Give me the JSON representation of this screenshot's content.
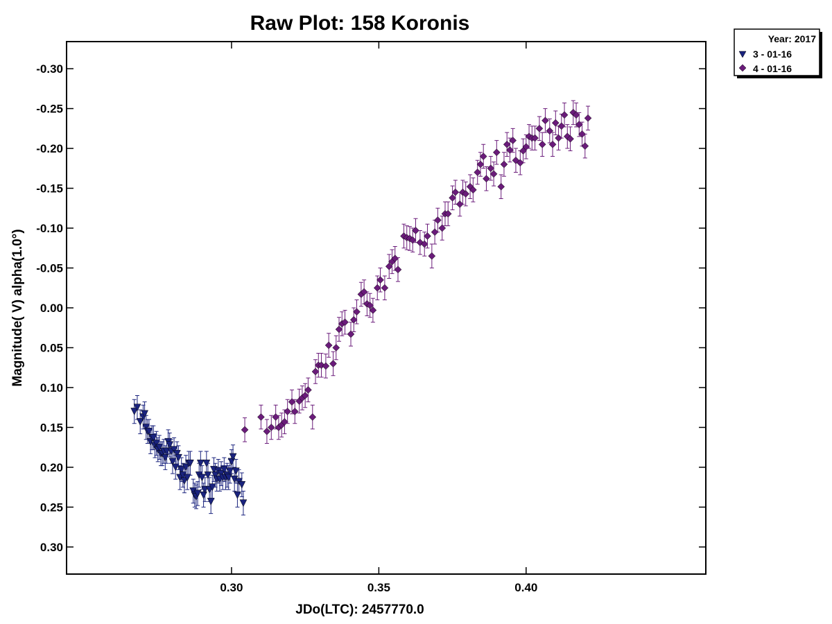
{
  "chart_data": {
    "type": "scatter",
    "title": "Raw Plot: 158 Koronis",
    "xlabel": "JDo(LTC): 2457770.0",
    "ylabel": "Magnitude( V) alpha(1.0°)",
    "xlim": [
      0.244,
      0.461
    ],
    "ylim": [
      0.334,
      -0.334
    ],
    "y_inverted": true,
    "x_ticks": [
      "0.30",
      "0.35",
      "0.40"
    ],
    "x_tick_values": [
      0.3,
      0.35,
      0.4
    ],
    "y_ticks": [
      "-0.30",
      "-0.25",
      "-0.20",
      "-0.15",
      "-0.10",
      "-0.05",
      "0.00",
      "0.05",
      "0.10",
      "0.15",
      "0.20",
      "0.25",
      "0.30"
    ],
    "y_tick_values": [
      -0.3,
      -0.25,
      -0.2,
      -0.15,
      -0.1,
      -0.05,
      0.0,
      0.05,
      0.1,
      0.15,
      0.2,
      0.25,
      0.3
    ],
    "grid": false,
    "error_bar": 0.015,
    "legend": {
      "placement": "top-right, outside plot",
      "title": "Year: 2017",
      "entries": [
        "3 - 01-16",
        "4 - 01-16"
      ]
    },
    "series": [
      {
        "name": "3 - 01-16",
        "marker": "triangle-down",
        "color": "#1a237e",
        "points": [
          [
            0.267,
            0.13
          ],
          [
            0.268,
            0.125
          ],
          [
            0.269,
            0.143
          ],
          [
            0.27,
            0.137
          ],
          [
            0.2705,
            0.133
          ],
          [
            0.271,
            0.15
          ],
          [
            0.2715,
            0.155
          ],
          [
            0.272,
            0.155
          ],
          [
            0.2725,
            0.168
          ],
          [
            0.273,
            0.163
          ],
          [
            0.2735,
            0.163
          ],
          [
            0.274,
            0.173
          ],
          [
            0.2745,
            0.17
          ],
          [
            0.275,
            0.178
          ],
          [
            0.2755,
            0.175
          ],
          [
            0.276,
            0.183
          ],
          [
            0.2765,
            0.183
          ],
          [
            0.277,
            0.18
          ],
          [
            0.2775,
            0.188
          ],
          [
            0.278,
            0.18
          ],
          [
            0.2785,
            0.168
          ],
          [
            0.279,
            0.172
          ],
          [
            0.2795,
            0.18
          ],
          [
            0.28,
            0.193
          ],
          [
            0.2805,
            0.178
          ],
          [
            0.281,
            0.2
          ],
          [
            0.2815,
            0.183
          ],
          [
            0.282,
            0.188
          ],
          [
            0.2825,
            0.213
          ],
          [
            0.283,
            0.203
          ],
          [
            0.2835,
            0.21
          ],
          [
            0.284,
            0.217
          ],
          [
            0.2845,
            0.2
          ],
          [
            0.285,
            0.213
          ],
          [
            0.2855,
            0.195
          ],
          [
            0.286,
            0.195
          ],
          [
            0.287,
            0.23
          ],
          [
            0.2875,
            0.235
          ],
          [
            0.288,
            0.237
          ],
          [
            0.2885,
            0.233
          ],
          [
            0.289,
            0.21
          ],
          [
            0.2895,
            0.195
          ],
          [
            0.29,
            0.213
          ],
          [
            0.2905,
            0.235
          ],
          [
            0.291,
            0.228
          ],
          [
            0.2915,
            0.195
          ],
          [
            0.292,
            0.21
          ],
          [
            0.2925,
            0.228
          ],
          [
            0.293,
            0.243
          ],
          [
            0.2935,
            0.225
          ],
          [
            0.294,
            0.203
          ],
          [
            0.2945,
            0.21
          ],
          [
            0.295,
            0.215
          ],
          [
            0.2955,
            0.205
          ],
          [
            0.296,
            0.215
          ],
          [
            0.2965,
            0.208
          ],
          [
            0.297,
            0.213
          ],
          [
            0.2975,
            0.203
          ],
          [
            0.298,
            0.213
          ],
          [
            0.2985,
            0.21
          ],
          [
            0.299,
            0.213
          ],
          [
            0.2995,
            0.205
          ],
          [
            0.3,
            0.193
          ],
          [
            0.3005,
            0.187
          ],
          [
            0.301,
            0.215
          ],
          [
            0.3015,
            0.205
          ],
          [
            0.302,
            0.235
          ],
          [
            0.3025,
            0.218
          ],
          [
            0.3035,
            0.222
          ],
          [
            0.304,
            0.245
          ]
        ]
      },
      {
        "name": "4 - 01-16",
        "marker": "diamond",
        "color": "#6a1b7a",
        "points": [
          [
            0.3045,
            0.153
          ],
          [
            0.31,
            0.137
          ],
          [
            0.312,
            0.155
          ],
          [
            0.3135,
            0.15
          ],
          [
            0.315,
            0.137
          ],
          [
            0.316,
            0.15
          ],
          [
            0.317,
            0.147
          ],
          [
            0.318,
            0.143
          ],
          [
            0.319,
            0.13
          ],
          [
            0.3205,
            0.118
          ],
          [
            0.3215,
            0.13
          ],
          [
            0.323,
            0.117
          ],
          [
            0.324,
            0.113
          ],
          [
            0.325,
            0.11
          ],
          [
            0.326,
            0.103
          ],
          [
            0.3275,
            0.137
          ],
          [
            0.3285,
            0.08
          ],
          [
            0.3295,
            0.072
          ],
          [
            0.3305,
            0.072
          ],
          [
            0.332,
            0.073
          ],
          [
            0.333,
            0.047
          ],
          [
            0.3345,
            0.07
          ],
          [
            0.3355,
            0.05
          ],
          [
            0.3365,
            0.027
          ],
          [
            0.3375,
            0.02
          ],
          [
            0.3385,
            0.018
          ],
          [
            0.3405,
            0.033
          ],
          [
            0.3415,
            0.015
          ],
          [
            0.3425,
            0.005
          ],
          [
            0.344,
            -0.017
          ],
          [
            0.345,
            -0.02
          ],
          [
            0.346,
            -0.005
          ],
          [
            0.347,
            -0.003
          ],
          [
            0.348,
            0.003
          ],
          [
            0.3495,
            -0.025
          ],
          [
            0.3505,
            -0.035
          ],
          [
            0.352,
            -0.025
          ],
          [
            0.3535,
            -0.052
          ],
          [
            0.3545,
            -0.058
          ],
          [
            0.3555,
            -0.062
          ],
          [
            0.3565,
            -0.048
          ],
          [
            0.3585,
            -0.09
          ],
          [
            0.3595,
            -0.088
          ],
          [
            0.3605,
            -0.087
          ],
          [
            0.3615,
            -0.085
          ],
          [
            0.3625,
            -0.097
          ],
          [
            0.364,
            -0.082
          ],
          [
            0.3655,
            -0.08
          ],
          [
            0.3665,
            -0.09
          ],
          [
            0.368,
            -0.065
          ],
          [
            0.369,
            -0.095
          ],
          [
            0.37,
            -0.11
          ],
          [
            0.3715,
            -0.1
          ],
          [
            0.3725,
            -0.118
          ],
          [
            0.3735,
            -0.118
          ],
          [
            0.375,
            -0.138
          ],
          [
            0.376,
            -0.145
          ],
          [
            0.3775,
            -0.13
          ],
          [
            0.3785,
            -0.145
          ],
          [
            0.3795,
            -0.143
          ],
          [
            0.381,
            -0.152
          ],
          [
            0.382,
            -0.148
          ],
          [
            0.3835,
            -0.17
          ],
          [
            0.3845,
            -0.18
          ],
          [
            0.3855,
            -0.19
          ],
          [
            0.3865,
            -0.162
          ],
          [
            0.388,
            -0.175
          ],
          [
            0.389,
            -0.168
          ],
          [
            0.39,
            -0.195
          ],
          [
            0.3915,
            -0.152
          ],
          [
            0.3925,
            -0.18
          ],
          [
            0.3935,
            -0.205
          ],
          [
            0.3945,
            -0.198
          ],
          [
            0.3955,
            -0.21
          ],
          [
            0.3965,
            -0.185
          ],
          [
            0.398,
            -0.182
          ],
          [
            0.399,
            -0.197
          ],
          [
            0.4,
            -0.202
          ],
          [
            0.401,
            -0.215
          ],
          [
            0.402,
            -0.213
          ],
          [
            0.403,
            -0.213
          ],
          [
            0.4045,
            -0.225
          ],
          [
            0.4055,
            -0.205
          ],
          [
            0.4065,
            -0.235
          ],
          [
            0.408,
            -0.222
          ],
          [
            0.409,
            -0.205
          ],
          [
            0.41,
            -0.232
          ],
          [
            0.411,
            -0.213
          ],
          [
            0.412,
            -0.228
          ],
          [
            0.413,
            -0.242
          ],
          [
            0.414,
            -0.215
          ],
          [
            0.415,
            -0.212
          ],
          [
            0.416,
            -0.245
          ],
          [
            0.417,
            -0.242
          ],
          [
            0.418,
            -0.23
          ],
          [
            0.419,
            -0.218
          ],
          [
            0.42,
            -0.203
          ],
          [
            0.421,
            -0.238
          ]
        ]
      }
    ]
  }
}
